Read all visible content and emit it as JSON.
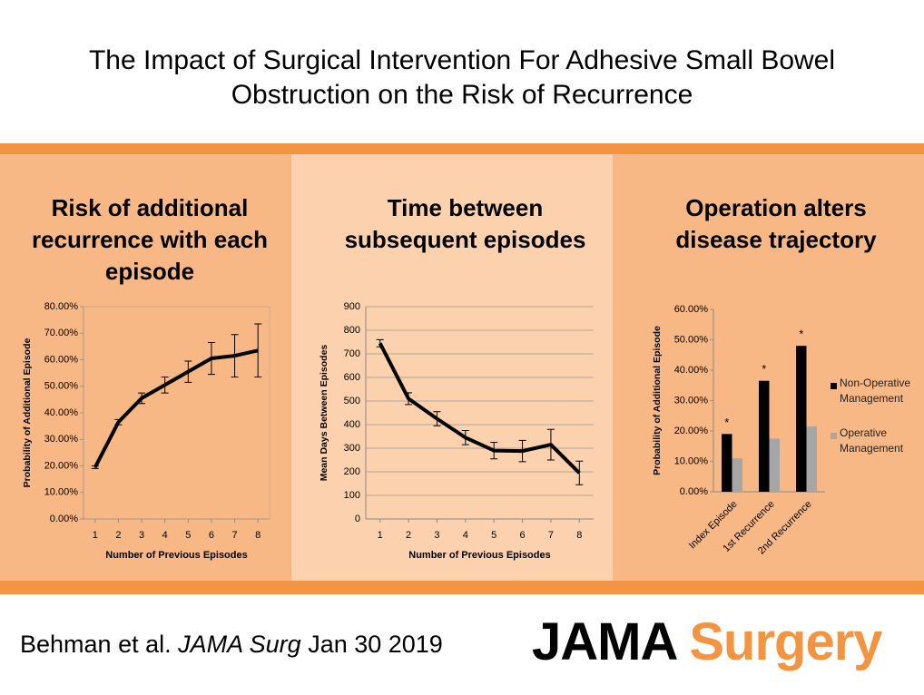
{
  "header": {
    "title": "The Impact of Surgical Intervention For Adhesive Small Bowel Obstruction on the Risk of Recurrence"
  },
  "chart_data": [
    {
      "type": "line",
      "title": "Risk of additional recurrence with each episode",
      "x_label": "Number of Previous Episodes",
      "y_label": "Probability of Additional Episode",
      "x": [
        1,
        2,
        3,
        4,
        5,
        6,
        7,
        8
      ],
      "xlim": [
        0.5,
        8.5
      ],
      "xticks": [
        1,
        2,
        3,
        4,
        5,
        6,
        7,
        8
      ],
      "values": [
        19.5,
        36.5,
        45.5,
        50.5,
        55.5,
        60.5,
        61.5,
        63.5
      ],
      "errors": [
        0.5,
        1,
        2,
        3,
        4,
        6,
        8,
        10
      ],
      "color": "#000000",
      "grid": false,
      "ylim": [
        0,
        80
      ],
      "yticks": [
        {
          "value": 0,
          "label": "0.00%"
        },
        {
          "value": 10,
          "label": "10.00%"
        },
        {
          "value": 20,
          "label": "20.00%"
        },
        {
          "value": 30,
          "label": "30.00%"
        },
        {
          "value": 40,
          "label": "40.00%"
        },
        {
          "value": 50,
          "label": "50.00%"
        },
        {
          "value": 60,
          "label": "60.00%"
        },
        {
          "value": 70,
          "label": "70.00%"
        },
        {
          "value": 80,
          "label": "80.00%"
        }
      ]
    },
    {
      "type": "line",
      "title": "Time between subsequent episodes",
      "x_label": "Number of Previous Episodes",
      "y_label": "Mean Days Between Episodes",
      "x": [
        1,
        2,
        3,
        4,
        5,
        6,
        7,
        8
      ],
      "xlim": [
        0.5,
        8.5
      ],
      "xticks": [
        1,
        2,
        3,
        4,
        5,
        6,
        7,
        8
      ],
      "values": [
        745,
        510,
        425,
        345,
        290,
        288,
        315,
        195
      ],
      "errors": [
        15,
        25,
        30,
        30,
        35,
        45,
        65,
        50
      ],
      "color": "#000000",
      "grid": true,
      "ylim": [
        0,
        900
      ],
      "yticks": [
        0,
        100,
        200,
        300,
        400,
        500,
        600,
        700,
        800,
        900
      ]
    },
    {
      "type": "bar",
      "title": "Operation alters disease trajectory",
      "y_label": "Probability of Additional Episode",
      "categories": [
        "Index Episode",
        "1st Recurrence",
        "2nd Recurrence"
      ],
      "series": [
        {
          "name": "Non-Operative Management",
          "color": "#000000",
          "values": [
            19,
            36.5,
            48
          ]
        },
        {
          "name": "Operative Management",
          "color": "#a6a6a6",
          "values": [
            11,
            17.5,
            21.5
          ]
        }
      ],
      "annotations": [
        "*",
        "*",
        "*"
      ],
      "grid": false,
      "legend": "right",
      "ylim": [
        0,
        60
      ],
      "yticks": [
        {
          "value": 0,
          "label": "0.00%"
        },
        {
          "value": 10,
          "label": "10.00%"
        },
        {
          "value": 20,
          "label": "20.00%"
        },
        {
          "value": 30,
          "label": "30.00%"
        },
        {
          "value": 40,
          "label": "40.00%"
        },
        {
          "value": 50,
          "label": "50.00%"
        },
        {
          "value": 60,
          "label": "60.00%"
        }
      ]
    }
  ],
  "footer": {
    "authors": "Behman et al.",
    "journal": "JAMA Surg",
    "date": "Jan 30 2019",
    "brand_black": "JAMA",
    "brand_orange": "Surgery"
  }
}
